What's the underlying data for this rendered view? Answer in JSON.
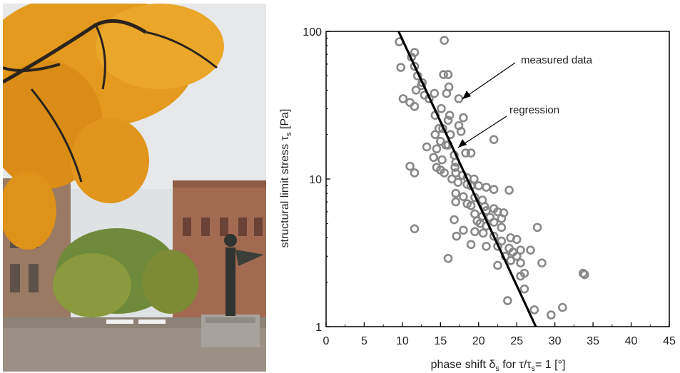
{
  "chart_data": {
    "type": "scatter",
    "xlabel": "phase shift δs for τ/τs = 1 [°]",
    "ylabel": "structural limit stress τs [Pa]",
    "xlim": [
      0,
      45
    ],
    "ylim": [
      1,
      100
    ],
    "y_scale": "log",
    "x_ticks": [
      "0",
      "5",
      "10",
      "15",
      "20",
      "25",
      "30",
      "35",
      "40",
      "45"
    ],
    "y_ticks": [
      "1",
      "10",
      "100"
    ],
    "annotations": [
      "measured data",
      "regression"
    ],
    "regression": [
      [
        9.5,
        100
      ],
      [
        27.5,
        1
      ]
    ],
    "series": [
      {
        "marker": "open-circle",
        "color": "#888888",
        "points": [
          [
            9.6,
            85
          ],
          [
            15.5,
            87
          ],
          [
            11.6,
            72
          ],
          [
            11.2,
            67
          ],
          [
            15.4,
            51
          ],
          [
            16.0,
            51
          ],
          [
            11.6,
            58
          ],
          [
            9.8,
            57
          ],
          [
            12.0,
            50
          ],
          [
            12.6,
            45
          ],
          [
            12.5,
            43
          ],
          [
            16.1,
            42
          ],
          [
            11.8,
            40
          ],
          [
            12.9,
            37
          ],
          [
            15.8,
            38
          ],
          [
            14.2,
            38
          ],
          [
            13.5,
            35
          ],
          [
            10.1,
            35
          ],
          [
            11.0,
            33
          ],
          [
            11.6,
            31
          ],
          [
            15.1,
            30
          ],
          [
            17.4,
            35
          ],
          [
            14.3,
            27
          ],
          [
            16.2,
            27
          ],
          [
            18.0,
            26
          ],
          [
            16.0,
            25
          ],
          [
            17.4,
            23
          ],
          [
            14.8,
            22
          ],
          [
            15.3,
            22
          ],
          [
            14.3,
            20
          ],
          [
            17.7,
            21
          ],
          [
            16.3,
            20
          ],
          [
            15.0,
            18
          ],
          [
            15.7,
            17
          ],
          [
            16.0,
            17
          ],
          [
            22.0,
            18.5
          ],
          [
            13.2,
            16.5
          ],
          [
            14.5,
            16
          ],
          [
            16.8,
            14.5
          ],
          [
            18.3,
            15
          ],
          [
            19.0,
            15
          ],
          [
            14.1,
            14
          ],
          [
            15.2,
            13.5
          ],
          [
            17.0,
            13
          ],
          [
            11.0,
            12.2
          ],
          [
            14.5,
            12
          ],
          [
            16.9,
            12
          ],
          [
            15.0,
            11.5
          ],
          [
            15.5,
            11
          ],
          [
            11.6,
            11
          ],
          [
            17.0,
            11
          ],
          [
            17.9,
            10.6
          ],
          [
            18.5,
            10.2
          ],
          [
            19.4,
            10
          ],
          [
            16.5,
            10
          ],
          [
            17.3,
            9.5
          ],
          [
            18.5,
            9.2
          ],
          [
            19.0,
            9
          ],
          [
            20.0,
            9
          ],
          [
            21.0,
            8.8
          ],
          [
            22.0,
            8.5
          ],
          [
            24.0,
            8.4
          ],
          [
            17.0,
            8.0
          ],
          [
            18.0,
            7.6
          ],
          [
            19.5,
            7.5
          ],
          [
            20.5,
            7.2
          ],
          [
            17.0,
            7.0
          ],
          [
            18.5,
            6.8
          ],
          [
            19.0,
            6.6
          ],
          [
            20.8,
            6.5
          ],
          [
            22.0,
            6.3
          ],
          [
            21.0,
            6.1
          ],
          [
            22.5,
            6.0
          ],
          [
            23.3,
            5.9
          ],
          [
            19.5,
            5.8
          ],
          [
            20.5,
            5.6
          ],
          [
            21.5,
            5.5
          ],
          [
            23.0,
            5.4
          ],
          [
            16.8,
            5.3
          ],
          [
            19.8,
            5.2
          ],
          [
            22.0,
            5.1
          ],
          [
            20.2,
            5.0
          ],
          [
            21.0,
            4.8
          ],
          [
            23.0,
            4.7
          ],
          [
            27.7,
            4.7
          ],
          [
            11.6,
            4.6
          ],
          [
            18.0,
            4.5
          ],
          [
            19.5,
            4.4
          ],
          [
            20.6,
            4.3
          ],
          [
            22.0,
            4.1
          ],
          [
            24.2,
            4.0
          ],
          [
            17.1,
            4.1
          ],
          [
            23.0,
            3.8
          ],
          [
            25.0,
            3.9
          ],
          [
            19.0,
            3.6
          ],
          [
            21.0,
            3.5
          ],
          [
            22.5,
            3.5
          ],
          [
            24.0,
            3.4
          ],
          [
            25.5,
            3.3
          ],
          [
            26.8,
            3.3
          ],
          [
            24.5,
            3.2
          ],
          [
            23.5,
            3.0
          ],
          [
            25.0,
            3.0
          ],
          [
            24.2,
            2.8
          ],
          [
            16.0,
            2.9
          ],
          [
            22.5,
            2.6
          ],
          [
            25.5,
            2.7
          ],
          [
            28.3,
            2.7
          ],
          [
            33.7,
            2.3
          ],
          [
            33.9,
            2.25
          ],
          [
            26.0,
            2.3
          ],
          [
            25.5,
            2.2
          ],
          [
            26.0,
            1.8
          ],
          [
            23.8,
            1.5
          ],
          [
            31.0,
            1.35
          ],
          [
            27.3,
            1.3
          ],
          [
            29.5,
            1.2
          ]
        ]
      }
    ]
  },
  "photo": {
    "colors": {
      "sky": "#d7dbde",
      "foliage": "#e39a1e",
      "building": "#a96a52",
      "ground": "#8a8073"
    }
  }
}
